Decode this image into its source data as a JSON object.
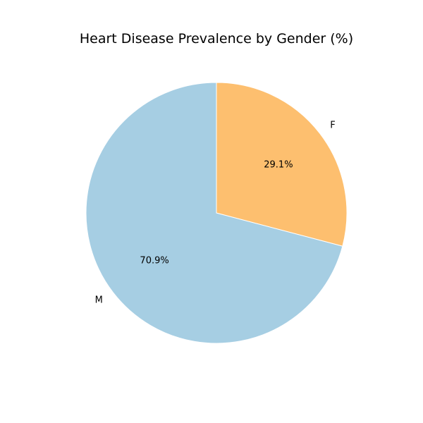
{
  "chart_data": {
    "type": "pie",
    "title": "Heart Disease Prevalence by Gender (%)",
    "categories": [
      "M",
      "F"
    ],
    "values": [
      70.9,
      29.1
    ],
    "value_labels": [
      "70.9%",
      "29.1%"
    ],
    "colors": [
      "#a6cee3",
      "#fdbf6f"
    ],
    "start_angle_deg": 90,
    "direction": "counterclockwise",
    "legend": "none"
  }
}
